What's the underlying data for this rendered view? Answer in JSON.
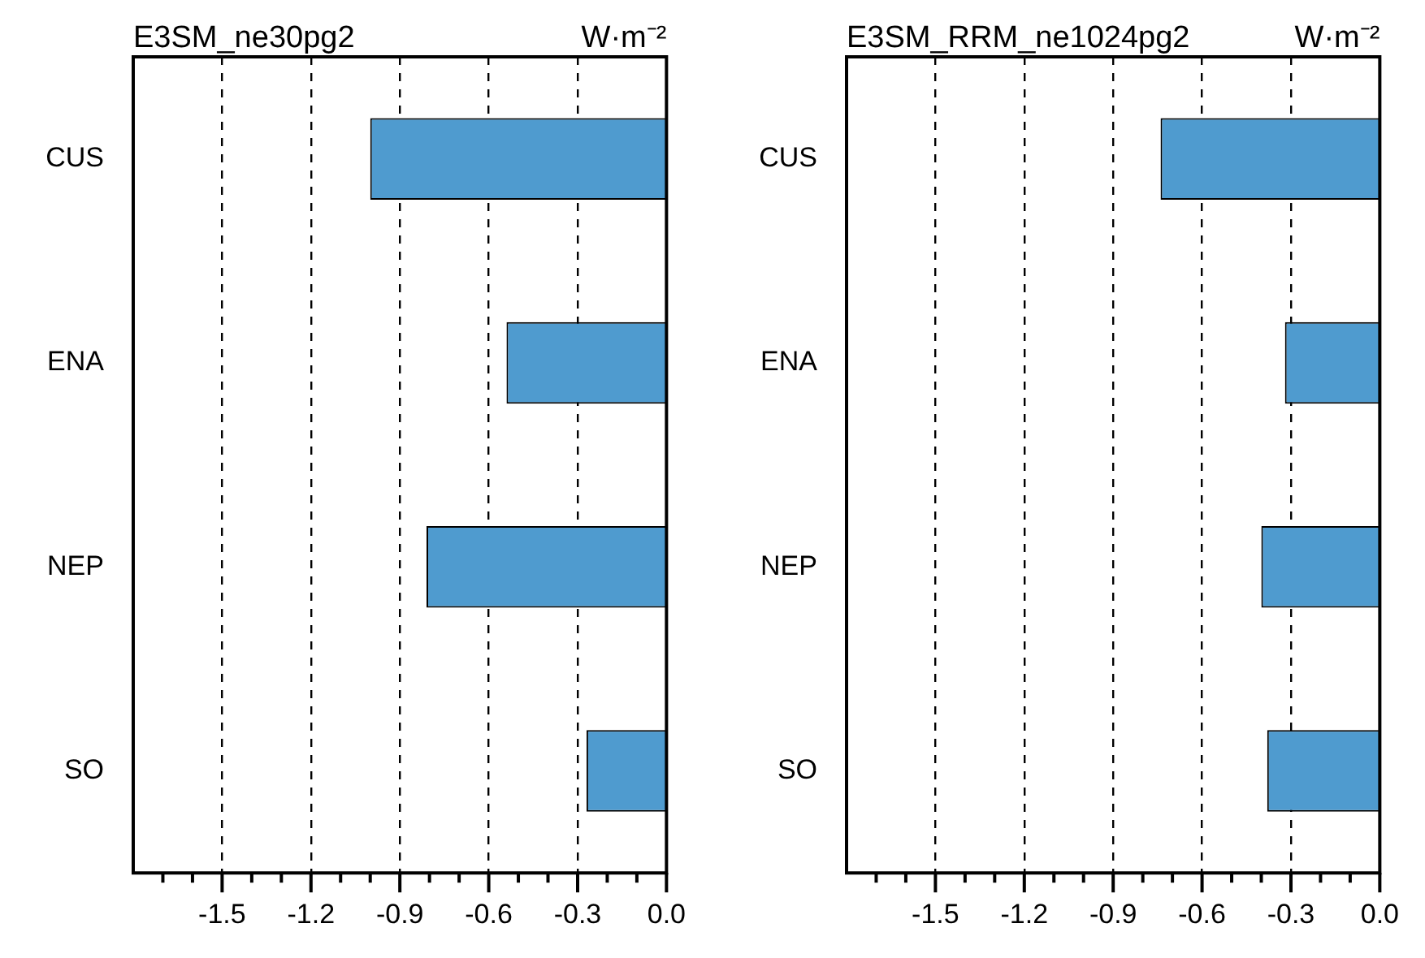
{
  "chart_data": [
    {
      "type": "bar",
      "orientation": "horizontal",
      "title": "E3SM_ne30pg2",
      "annotations": [
        "W·m⁻²"
      ],
      "categories": [
        "CUS",
        "ENA",
        "NEP",
        "SO"
      ],
      "values": [
        -1.0,
        -0.54,
        -0.81,
        -0.27
      ],
      "color": "#4f9bcf",
      "xlim": [
        -1.8,
        0.0
      ],
      "xticks": [
        {
          "value": -1.7,
          "label": null
        },
        {
          "value": -1.6,
          "label": null
        },
        -1.5,
        {
          "value": -1.4,
          "label": null
        },
        {
          "value": -1.3,
          "label": null
        },
        -1.2,
        {
          "value": -1.1,
          "label": null
        },
        {
          "value": -1.0,
          "label": null
        },
        -0.9,
        {
          "value": -0.8,
          "label": null
        },
        {
          "value": -0.7,
          "label": null
        },
        -0.6,
        {
          "value": -0.5,
          "label": null
        },
        {
          "value": -0.4,
          "label": null
        },
        -0.3,
        {
          "value": -0.2,
          "label": null
        },
        {
          "value": -0.1,
          "label": null
        },
        {
          "value": 0.0,
          "label": "0.0"
        }
      ],
      "grid": "x",
      "line_style": "dashed"
    },
    {
      "type": "bar",
      "orientation": "horizontal",
      "title": "E3SM_RRM_ne1024pg2",
      "annotations": [
        "W·m⁻²"
      ],
      "categories": [
        "CUS",
        "ENA",
        "NEP",
        "SO"
      ],
      "values": [
        -0.74,
        -0.32,
        -0.4,
        -0.38
      ],
      "color": "#4f9bcf",
      "xlim": [
        -1.8,
        0.0
      ],
      "xticks": [
        {
          "value": -1.7,
          "label": null
        },
        {
          "value": -1.6,
          "label": null
        },
        -1.5,
        {
          "value": -1.4,
          "label": null
        },
        {
          "value": -1.3,
          "label": null
        },
        -1.2,
        {
          "value": -1.1,
          "label": null
        },
        {
          "value": -1.0,
          "label": null
        },
        -0.9,
        {
          "value": -0.8,
          "label": null
        },
        {
          "value": -0.7,
          "label": null
        },
        -0.6,
        {
          "value": -0.5,
          "label": null
        },
        {
          "value": -0.4,
          "label": null
        },
        -0.3,
        {
          "value": -0.2,
          "label": null
        },
        {
          "value": -0.1,
          "label": null
        },
        {
          "value": 0.0,
          "label": "0.0"
        }
      ],
      "grid": "x",
      "line_style": "dashed"
    }
  ]
}
